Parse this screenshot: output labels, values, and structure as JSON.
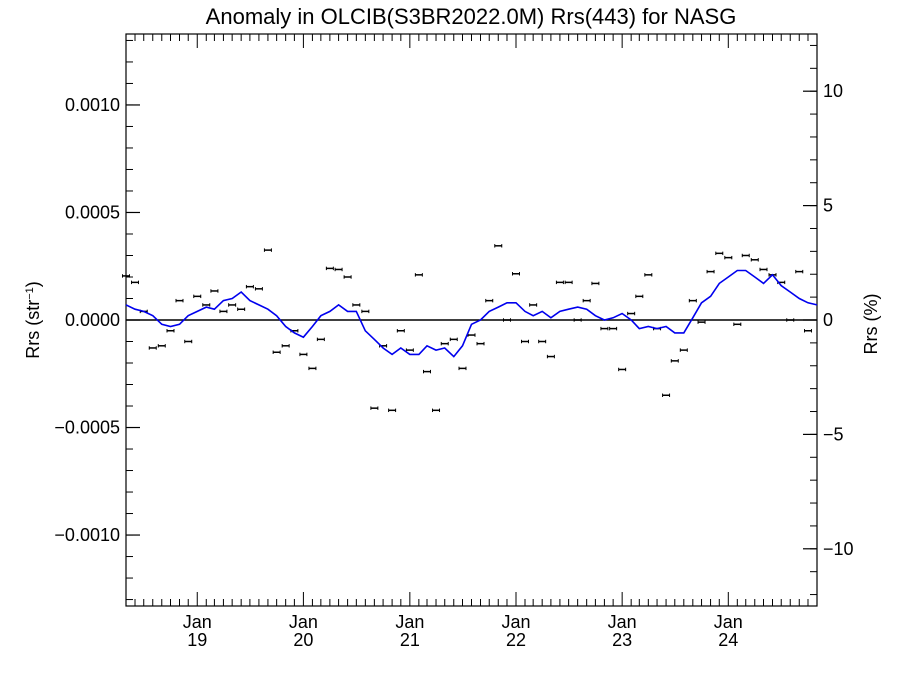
{
  "chart_data": {
    "type": "scatter",
    "title": "Anomaly in OLCIB(S3BR2022.0M) Rrs(443) for NASG",
    "ylabel_left": "Rrs (str⁻¹)",
    "ylabel_right": "Rrs (%)",
    "xlim": [
      "2018-05-01",
      "2024-11-01"
    ],
    "ylim": [
      -0.00133,
      0.00133
    ],
    "ylim_right": [
      -12.5,
      12.5
    ],
    "x_ticks": [
      {
        "date": "2019-01-01",
        "month": "Jan",
        "year": "19"
      },
      {
        "date": "2020-01-01",
        "month": "Jan",
        "year": "20"
      },
      {
        "date": "2021-01-01",
        "month": "Jan",
        "year": "21"
      },
      {
        "date": "2022-01-01",
        "month": "Jan",
        "year": "22"
      },
      {
        "date": "2023-01-01",
        "month": "Jan",
        "year": "23"
      },
      {
        "date": "2024-01-01",
        "month": "Jan",
        "year": "24"
      }
    ],
    "y_ticks_left": [
      {
        "value": 0.001,
        "label": "0.0010"
      },
      {
        "value": 0.0005,
        "label": "0.0005"
      },
      {
        "value": 0.0,
        "label": "0.0000"
      },
      {
        "value": -0.0005,
        "label": "−0.0005"
      },
      {
        "value": -0.001,
        "label": "−0.0010"
      }
    ],
    "y_ticks_right": [
      {
        "value": 10,
        "label": "10"
      },
      {
        "value": 5,
        "label": "5"
      },
      {
        "value": 0,
        "label": "0"
      },
      {
        "value": -5,
        "label": "−5"
      },
      {
        "value": -10,
        "label": "−10"
      }
    ],
    "grid": false,
    "zero_line": true,
    "series": [
      {
        "kind": "monthly anomaly (points with error bars)",
        "color": "#000000",
        "error": 8e-06,
        "points": [
          [
            "2018-05-01",
            0.000205
          ],
          [
            "2018-06-01",
            0.000175
          ],
          [
            "2018-07-01",
            4e-05
          ],
          [
            "2018-08-01",
            -0.00013
          ],
          [
            "2018-09-01",
            -0.00012
          ],
          [
            "2018-10-01",
            -5e-05
          ],
          [
            "2018-11-01",
            9e-05
          ],
          [
            "2018-12-01",
            -0.0001
          ],
          [
            "2019-01-01",
            0.00011
          ],
          [
            "2019-02-01",
            7e-05
          ],
          [
            "2019-03-01",
            0.000135
          ],
          [
            "2019-04-01",
            4e-05
          ],
          [
            "2019-05-01",
            7e-05
          ],
          [
            "2019-06-01",
            5e-05
          ],
          [
            "2019-07-01",
            0.000155
          ],
          [
            "2019-08-01",
            0.000145
          ],
          [
            "2019-09-01",
            0.000325
          ],
          [
            "2019-10-01",
            -0.00015
          ],
          [
            "2019-11-01",
            -0.00012
          ],
          [
            "2019-12-01",
            -5e-05
          ],
          [
            "2020-01-01",
            -0.00016
          ],
          [
            "2020-02-01",
            -0.000225
          ],
          [
            "2020-03-01",
            -9e-05
          ],
          [
            "2020-04-01",
            0.00024
          ],
          [
            "2020-05-01",
            0.000235
          ],
          [
            "2020-06-01",
            0.0002
          ],
          [
            "2020-07-01",
            7e-05
          ],
          [
            "2020-08-01",
            4e-05
          ],
          [
            "2020-09-01",
            -0.00041
          ],
          [
            "2020-10-01",
            -0.00012
          ],
          [
            "2020-11-01",
            -0.00042
          ],
          [
            "2020-12-01",
            -5e-05
          ],
          [
            "2021-01-01",
            -0.00014
          ],
          [
            "2021-02-01",
            0.00021
          ],
          [
            "2021-03-01",
            -0.00024
          ],
          [
            "2021-04-01",
            -0.00042
          ],
          [
            "2021-05-01",
            -0.00011
          ],
          [
            "2021-06-01",
            -9e-05
          ],
          [
            "2021-07-01",
            -0.000225
          ],
          [
            "2021-08-01",
            -7e-05
          ],
          [
            "2021-09-01",
            -0.00011
          ],
          [
            "2021-10-01",
            9e-05
          ],
          [
            "2021-11-01",
            0.000345
          ],
          [
            "2021-12-01",
            0.0
          ],
          [
            "2022-01-01",
            0.000215
          ],
          [
            "2022-02-01",
            -0.0001
          ],
          [
            "2022-03-01",
            7e-05
          ],
          [
            "2022-04-01",
            -0.0001
          ],
          [
            "2022-05-01",
            -0.00017
          ],
          [
            "2022-06-01",
            0.000175
          ],
          [
            "2022-07-01",
            0.000175
          ],
          [
            "2022-08-01",
            0.0
          ],
          [
            "2022-09-01",
            9e-05
          ],
          [
            "2022-10-01",
            0.00017
          ],
          [
            "2022-11-01",
            -4e-05
          ],
          [
            "2022-12-01",
            -4e-05
          ],
          [
            "2023-01-01",
            -0.00023
          ],
          [
            "2023-02-01",
            3e-05
          ],
          [
            "2023-03-01",
            0.00011
          ],
          [
            "2023-04-01",
            0.00021
          ],
          [
            "2023-05-01",
            -4e-05
          ],
          [
            "2023-06-01",
            -0.00035
          ],
          [
            "2023-07-01",
            -0.00019
          ],
          [
            "2023-08-01",
            -0.00014
          ],
          [
            "2023-09-01",
            9e-05
          ],
          [
            "2023-10-01",
            -1e-05
          ],
          [
            "2023-11-01",
            0.000225
          ],
          [
            "2023-12-01",
            0.00031
          ],
          [
            "2024-01-01",
            0.00029
          ],
          [
            "2024-02-01",
            -2e-05
          ],
          [
            "2024-03-01",
            0.0003
          ],
          [
            "2024-04-01",
            0.00028
          ],
          [
            "2024-05-01",
            0.000235
          ],
          [
            "2024-06-01",
            0.00021
          ],
          [
            "2024-07-01",
            0.000175
          ],
          [
            "2024-08-01",
            0.0
          ],
          [
            "2024-09-01",
            0.000225
          ],
          [
            "2024-10-01",
            -5e-05
          ]
        ]
      },
      {
        "kind": "running mean (line)",
        "color": "#0000ee",
        "points": [
          [
            "2018-05-01",
            7e-05
          ],
          [
            "2018-06-01",
            5e-05
          ],
          [
            "2018-07-01",
            4e-05
          ],
          [
            "2018-08-01",
            2e-05
          ],
          [
            "2018-09-01",
            -2e-05
          ],
          [
            "2018-10-01",
            -3e-05
          ],
          [
            "2018-11-01",
            -2e-05
          ],
          [
            "2018-12-01",
            2e-05
          ],
          [
            "2019-01-01",
            4e-05
          ],
          [
            "2019-02-01",
            6e-05
          ],
          [
            "2019-03-01",
            5e-05
          ],
          [
            "2019-04-01",
            9e-05
          ],
          [
            "2019-05-01",
            0.0001
          ],
          [
            "2019-06-01",
            0.00013
          ],
          [
            "2019-07-01",
            9e-05
          ],
          [
            "2019-08-01",
            7e-05
          ],
          [
            "2019-09-01",
            5e-05
          ],
          [
            "2019-10-01",
            2e-05
          ],
          [
            "2019-11-01",
            -3e-05
          ],
          [
            "2019-12-01",
            -6e-05
          ],
          [
            "2020-01-01",
            -8e-05
          ],
          [
            "2020-02-01",
            -3e-05
          ],
          [
            "2020-03-01",
            2e-05
          ],
          [
            "2020-04-01",
            4e-05
          ],
          [
            "2020-05-01",
            7e-05
          ],
          [
            "2020-06-01",
            4e-05
          ],
          [
            "2020-07-01",
            4e-05
          ],
          [
            "2020-08-01",
            -5e-05
          ],
          [
            "2020-09-01",
            -9e-05
          ],
          [
            "2020-10-01",
            -0.00013
          ],
          [
            "2020-11-01",
            -0.00016
          ],
          [
            "2020-12-01",
            -0.00013
          ],
          [
            "2021-01-01",
            -0.00016
          ],
          [
            "2021-02-01",
            -0.00016
          ],
          [
            "2021-03-01",
            -0.00012
          ],
          [
            "2021-04-01",
            -0.00014
          ],
          [
            "2021-05-01",
            -0.00013
          ],
          [
            "2021-06-01",
            -0.00017
          ],
          [
            "2021-07-01",
            -0.00012
          ],
          [
            "2021-08-01",
            -2e-05
          ],
          [
            "2021-09-01",
            0.0
          ],
          [
            "2021-10-01",
            4e-05
          ],
          [
            "2021-11-01",
            6e-05
          ],
          [
            "2021-12-01",
            8e-05
          ],
          [
            "2022-01-01",
            8e-05
          ],
          [
            "2022-02-01",
            4e-05
          ],
          [
            "2022-03-01",
            2e-05
          ],
          [
            "2022-04-01",
            4e-05
          ],
          [
            "2022-05-01",
            1e-05
          ],
          [
            "2022-06-01",
            4e-05
          ],
          [
            "2022-07-01",
            5e-05
          ],
          [
            "2022-08-01",
            6e-05
          ],
          [
            "2022-09-01",
            5e-05
          ],
          [
            "2022-10-01",
            2e-05
          ],
          [
            "2022-11-01",
            0.0
          ],
          [
            "2022-12-01",
            1e-05
          ],
          [
            "2023-01-01",
            3e-05
          ],
          [
            "2023-02-01",
            0.0
          ],
          [
            "2023-03-01",
            -4e-05
          ],
          [
            "2023-04-01",
            -3e-05
          ],
          [
            "2023-05-01",
            -4e-05
          ],
          [
            "2023-06-01",
            -3e-05
          ],
          [
            "2023-07-01",
            -6e-05
          ],
          [
            "2023-08-01",
            -6e-05
          ],
          [
            "2023-09-01",
            1e-05
          ],
          [
            "2023-10-01",
            8e-05
          ],
          [
            "2023-11-01",
            0.00011
          ],
          [
            "2023-12-01",
            0.00017
          ],
          [
            "2024-01-01",
            0.0002
          ],
          [
            "2024-02-01",
            0.00023
          ],
          [
            "2024-03-01",
            0.00023
          ],
          [
            "2024-04-01",
            0.0002
          ],
          [
            "2024-05-01",
            0.00017
          ],
          [
            "2024-06-01",
            0.00021
          ],
          [
            "2024-07-01",
            0.00016
          ],
          [
            "2024-08-01",
            0.00013
          ],
          [
            "2024-09-01",
            0.0001
          ],
          [
            "2024-10-01",
            8e-05
          ],
          [
            "2024-11-01",
            7e-05
          ]
        ]
      }
    ]
  }
}
